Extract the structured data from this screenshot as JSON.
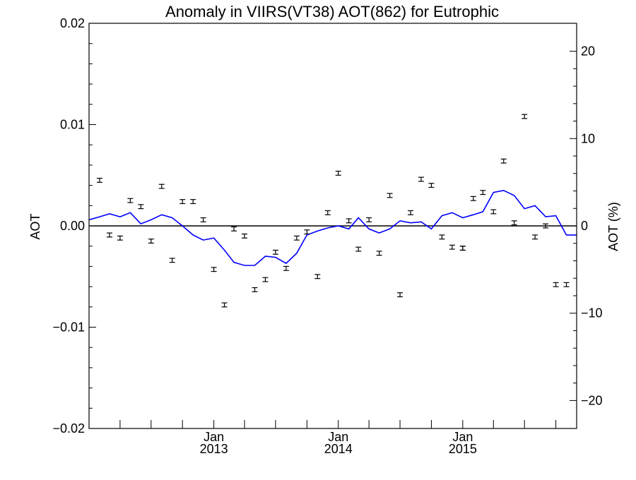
{
  "chart_data": {
    "type": "line",
    "title": "Anomaly in VIIRS(VT38) AOT(862) for Eutrophic",
    "ylabel": "AOT",
    "ylabel_right": "AOT (%)",
    "ylim": [
      -0.02,
      0.02
    ],
    "ylim_right": [
      -23.2,
      23.2
    ],
    "yticks": [
      {
        "value": 0.02,
        "label": "0.02"
      },
      {
        "value": 0.01,
        "label": "0.01"
      },
      {
        "value": 0.0,
        "label": "0.00"
      },
      {
        "value": -0.01,
        "label": "-0.01"
      },
      {
        "value": -0.02,
        "label": "-0.02"
      }
    ],
    "yticks_right": [
      {
        "value": 20,
        "label": "20"
      },
      {
        "value": 10,
        "label": "10"
      },
      {
        "value": 0,
        "label": "0"
      },
      {
        "value": -10,
        "label": "-10"
      },
      {
        "value": -20,
        "label": "-20"
      }
    ],
    "xlim": [
      "2012-01-15",
      "2015-12-15"
    ],
    "xticks": [
      {
        "date": "2012-04-15",
        "label": ""
      },
      {
        "date": "2012-07-15",
        "label": ""
      },
      {
        "date": "2012-10-15",
        "label": ""
      },
      {
        "date": "2013-01-15",
        "label": "Jan",
        "year": "2013"
      },
      {
        "date": "2013-04-15",
        "label": ""
      },
      {
        "date": "2013-07-15",
        "label": ""
      },
      {
        "date": "2013-10-15",
        "label": ""
      },
      {
        "date": "2014-01-15",
        "label": "Jan",
        "year": "2014"
      },
      {
        "date": "2014-04-15",
        "label": ""
      },
      {
        "date": "2014-07-15",
        "label": ""
      },
      {
        "date": "2014-10-15",
        "label": ""
      },
      {
        "date": "2015-01-15",
        "label": "Jan",
        "year": "2015"
      },
      {
        "date": "2015-04-15",
        "label": ""
      },
      {
        "date": "2015-07-15",
        "label": ""
      },
      {
        "date": "2015-10-15",
        "label": ""
      }
    ],
    "grid": false,
    "zero_line": true,
    "series": [
      {
        "kind": "points-with-error-bars",
        "color": "#000000",
        "x": [
          "2012-02-15",
          "2012-03-15",
          "2012-04-15",
          "2012-05-15",
          "2012-06-15",
          "2012-07-15",
          "2012-08-15",
          "2012-09-15",
          "2012-10-15",
          "2012-11-15",
          "2012-12-15",
          "2013-01-15",
          "2013-02-15",
          "2013-03-15",
          "2013-04-15",
          "2013-05-15",
          "2013-06-15",
          "2013-07-15",
          "2013-08-15",
          "2013-09-15",
          "2013-10-15",
          "2013-11-15",
          "2013-12-15",
          "2014-01-15",
          "2014-02-15",
          "2014-03-15",
          "2014-04-15",
          "2014-05-15",
          "2014-06-15",
          "2014-07-15",
          "2014-08-15",
          "2014-09-15",
          "2014-10-15",
          "2014-11-15",
          "2014-12-15",
          "2015-01-15",
          "2015-01-15",
          "2015-02-15",
          "2015-03-15",
          "2015-04-15",
          "2015-05-15",
          "2015-06-15",
          "2015-07-15",
          "2015-08-15",
          "2015-09-15",
          "2015-10-15",
          "2015-11-15"
        ],
        "y": [
          0.0045,
          -0.0009,
          -0.0012,
          0.0025,
          0.0019,
          -0.0015,
          0.0039,
          -0.0034,
          0.0024,
          0.0024,
          0.0006,
          -0.0043,
          -0.0078,
          -0.0003,
          -0.001,
          -0.0063,
          -0.0053,
          -0.0026,
          -0.0042,
          -0.0012,
          -0.0006,
          -0.005,
          0.0013,
          0.0052,
          0.0005,
          -0.0023,
          0.0006,
          -0.0027,
          0.003,
          -0.0068,
          0.0013,
          0.0046,
          0.004,
          -0.0011,
          -0.0021,
          -0.0022,
          -0.0022,
          0.0027,
          0.0033,
          0.0014,
          0.0064,
          0.0003,
          0.0108,
          -0.0011,
          0.0,
          -0.0058,
          -0.0058
        ],
        "err": 0.0002
      },
      {
        "kind": "line",
        "color": "#0000ff",
        "x": [
          "2012-01-15",
          "2012-02-15",
          "2012-03-15",
          "2012-04-15",
          "2012-05-15",
          "2012-06-15",
          "2012-07-15",
          "2012-08-15",
          "2012-09-15",
          "2012-10-15",
          "2012-11-15",
          "2012-12-15",
          "2013-01-15",
          "2013-02-15",
          "2013-03-15",
          "2013-04-15",
          "2013-05-15",
          "2013-06-15",
          "2013-07-15",
          "2013-08-15",
          "2013-09-15",
          "2013-10-15",
          "2013-11-15",
          "2013-12-15",
          "2014-01-15",
          "2014-02-15",
          "2014-03-15",
          "2014-04-15",
          "2014-05-15",
          "2014-06-15",
          "2014-07-15",
          "2014-08-15",
          "2014-09-15",
          "2014-10-15",
          "2014-11-15",
          "2014-12-15",
          "2015-01-15",
          "2015-02-15",
          "2015-03-15",
          "2015-04-15",
          "2015-05-15",
          "2015-06-15",
          "2015-07-15",
          "2015-08-15",
          "2015-09-15",
          "2015-10-15",
          "2015-11-15",
          "2015-12-15"
        ],
        "y": [
          0.0006,
          0.0009,
          0.0012,
          0.0009,
          0.0013,
          0.0002,
          0.0006,
          0.0011,
          0.0008,
          0.0,
          -0.0009,
          -0.0014,
          -0.0012,
          -0.0024,
          -0.0036,
          -0.0039,
          -0.0039,
          -0.003,
          -0.0031,
          -0.0037,
          -0.0027,
          -0.0009,
          -0.0005,
          -0.0002,
          0.0,
          -0.0003,
          0.0008,
          -0.0003,
          -0.0007,
          -0.0003,
          0.0005,
          0.0003,
          0.0004,
          -0.0003,
          0.001,
          0.0013,
          0.0008,
          0.0011,
          0.0014,
          0.0033,
          0.0035,
          0.003,
          0.0017,
          0.002,
          0.0009,
          0.001,
          -0.0009,
          -0.0009
        ]
      }
    ]
  }
}
